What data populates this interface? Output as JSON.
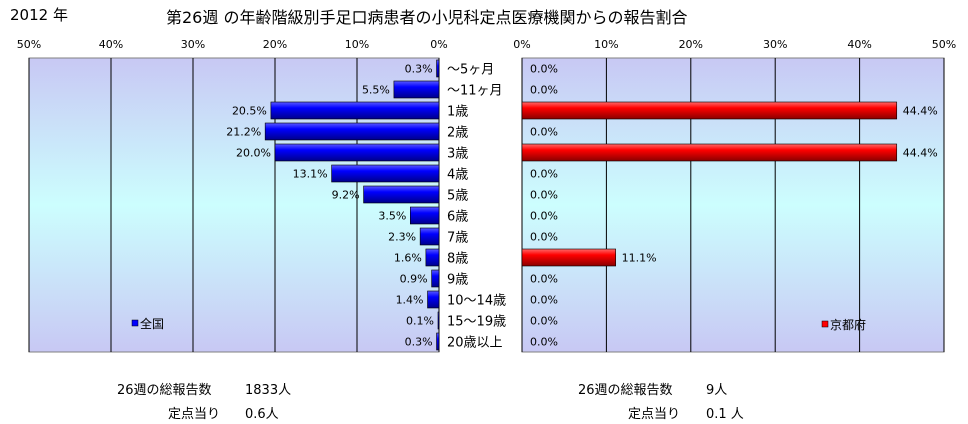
{
  "header": {
    "year": "2012 年",
    "title": "第26週 の年齢階級別手足口病患者の小児科定点医療機関からの報告割合"
  },
  "chart_data": {
    "type": "bar",
    "categories": [
      "～5ヶ月",
      "～11ヶ月",
      "1歳",
      "2歳",
      "3歳",
      "4歳",
      "5歳",
      "6歳",
      "7歳",
      "8歳",
      "9歳",
      "10～14歳",
      "15～19歳",
      "20歳以上"
    ],
    "x_ticks": [
      "50%",
      "40%",
      "30%",
      "20%",
      "10%",
      "0%"
    ],
    "x_ticks_right": [
      "0%",
      "10%",
      "20%",
      "30%",
      "40%",
      "50%"
    ],
    "xlim": [
      0,
      50
    ],
    "series": [
      {
        "name": "全国",
        "color": "#0000ff",
        "values": [
          0.3,
          5.5,
          20.5,
          21.2,
          20.0,
          13.1,
          9.2,
          3.5,
          2.3,
          1.6,
          0.9,
          1.4,
          0.1,
          0.3
        ],
        "labels": [
          "0.3%",
          "5.5%",
          "20.5%",
          "21.2%",
          "20.0%",
          "13.1%",
          "9.2%",
          "3.5%",
          "2.3%",
          "1.6%",
          "0.9%",
          "1.4%",
          "0.1%",
          "0.3%"
        ]
      },
      {
        "name": "京都府",
        "color": "#ff0000",
        "values": [
          0.0,
          0.0,
          44.4,
          0.0,
          44.4,
          0.0,
          0.0,
          0.0,
          0.0,
          11.1,
          0.0,
          0.0,
          0.0,
          0.0
        ],
        "labels": [
          "0.0%",
          "0.0%",
          "44.4%",
          "0.0%",
          "44.4%",
          "0.0%",
          "0.0%",
          "0.0%",
          "0.0%",
          "11.1%",
          "0.0%",
          "0.0%",
          "0.0%",
          "0.0%"
        ]
      }
    ],
    "grid": true,
    "legend_placement": "bottom-left / bottom-right inside each panel"
  },
  "footer": {
    "left": {
      "total_label": "26週の総報告数",
      "total_value": "1833人",
      "per_label": "定点当り",
      "per_value": "0.6人"
    },
    "right": {
      "total_label": "26週の総報告数",
      "total_value": "9人",
      "per_label": "定点当り",
      "per_value": "0.1 人"
    }
  }
}
